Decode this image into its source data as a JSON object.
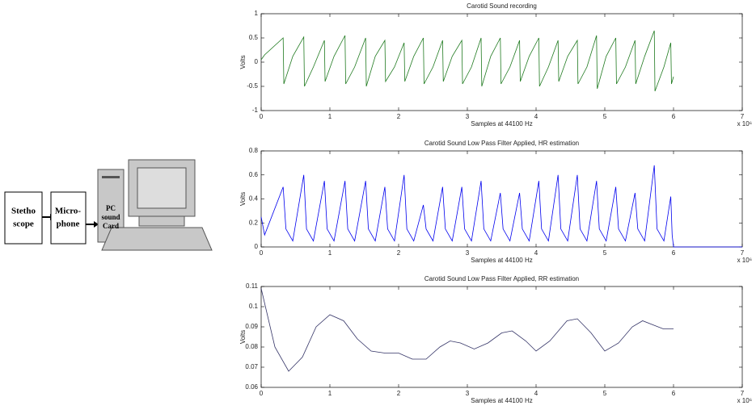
{
  "diagram": {
    "nodes": [
      {
        "label": [
          "Stetho",
          "scope"
        ]
      },
      {
        "label": [
          "Micro-",
          "phone"
        ]
      },
      {
        "label": [
          "PC",
          "sound",
          "Card"
        ]
      }
    ]
  },
  "chart_data": [
    {
      "type": "line",
      "title": "Carotid Sound recording",
      "xlabel": "Samples at 44100 Hz",
      "ylabel": "Volts",
      "x_exponent": "x 10⁶",
      "color": "#1f7a1f",
      "xlim": [
        0,
        7
      ],
      "xticks": [
        0,
        1,
        2,
        3,
        4,
        5,
        6,
        7
      ],
      "ylim": [
        -1,
        1
      ],
      "yticks": [
        -1,
        -0.5,
        0,
        0.5,
        1
      ],
      "x": [
        0,
        0.05,
        0.32,
        0.33,
        0.46,
        0.62,
        0.63,
        0.76,
        0.92,
        0.93,
        1.06,
        1.22,
        1.23,
        1.36,
        1.52,
        1.53,
        1.66,
        1.8,
        1.81,
        1.94,
        2.08,
        2.09,
        2.22,
        2.36,
        2.37,
        2.5,
        2.64,
        2.65,
        2.78,
        2.92,
        2.93,
        3.06,
        3.2,
        3.21,
        3.34,
        3.48,
        3.49,
        3.62,
        3.76,
        3.77,
        3.9,
        4.04,
        4.05,
        4.18,
        4.32,
        4.33,
        4.46,
        4.6,
        4.61,
        4.74,
        4.88,
        4.89,
        5.02,
        5.16,
        5.17,
        5.3,
        5.44,
        5.45,
        5.58,
        5.72,
        5.73,
        5.86,
        5.96,
        5.97,
        6.0
      ],
      "values": [
        0.05,
        0.15,
        0.5,
        -0.45,
        0.12,
        0.52,
        -0.5,
        -0.1,
        0.45,
        -0.4,
        0.12,
        0.55,
        -0.45,
        -0.1,
        0.5,
        -0.5,
        0.12,
        0.45,
        -0.4,
        -0.1,
        0.4,
        -0.4,
        0.12,
        0.5,
        -0.45,
        -0.1,
        0.45,
        -0.4,
        0.12,
        0.45,
        -0.45,
        -0.1,
        0.5,
        -0.5,
        0.12,
        0.5,
        -0.45,
        -0.1,
        0.45,
        -0.4,
        0.12,
        0.5,
        -0.5,
        -0.1,
        0.45,
        -0.4,
        0.12,
        0.45,
        -0.45,
        -0.1,
        0.55,
        -0.55,
        0.12,
        0.5,
        -0.45,
        -0.1,
        0.45,
        -0.45,
        0.12,
        0.65,
        -0.6,
        -0.1,
        0.4,
        -0.45,
        -0.3
      ]
    },
    {
      "type": "line",
      "title": "Carotid Sound Low Pass Filter Applied, HR estimation",
      "xlabel": "Samples at 44100 Hz",
      "ylabel": "Volts",
      "x_exponent": "x 10⁶",
      "color": "#0000ee",
      "xlim": [
        0,
        7
      ],
      "xticks": [
        0,
        1,
        2,
        3,
        4,
        5,
        6,
        7
      ],
      "ylim": [
        0,
        0.8
      ],
      "yticks": [
        0,
        0.2,
        0.4,
        0.6,
        0.8
      ],
      "x": [
        0,
        0.05,
        0.32,
        0.36,
        0.46,
        0.62,
        0.66,
        0.76,
        0.92,
        0.96,
        1.06,
        1.22,
        1.26,
        1.36,
        1.52,
        1.56,
        1.66,
        1.8,
        1.84,
        1.94,
        2.08,
        2.12,
        2.22,
        2.36,
        2.4,
        2.5,
        2.64,
        2.68,
        2.78,
        2.92,
        2.96,
        3.06,
        3.2,
        3.24,
        3.34,
        3.48,
        3.52,
        3.62,
        3.76,
        3.8,
        3.9,
        4.04,
        4.08,
        4.18,
        4.32,
        4.36,
        4.46,
        4.6,
        4.64,
        4.74,
        4.88,
        4.92,
        5.02,
        5.16,
        5.2,
        5.3,
        5.44,
        5.48,
        5.58,
        5.72,
        5.76,
        5.86,
        5.96,
        5.98,
        6.0,
        7.0
      ],
      "values": [
        0.25,
        0.1,
        0.5,
        0.15,
        0.05,
        0.6,
        0.15,
        0.05,
        0.55,
        0.15,
        0.05,
        0.55,
        0.15,
        0.05,
        0.55,
        0.15,
        0.05,
        0.5,
        0.15,
        0.05,
        0.6,
        0.15,
        0.05,
        0.35,
        0.15,
        0.05,
        0.5,
        0.15,
        0.05,
        0.5,
        0.15,
        0.05,
        0.55,
        0.15,
        0.05,
        0.45,
        0.15,
        0.05,
        0.45,
        0.15,
        0.05,
        0.55,
        0.15,
        0.05,
        0.6,
        0.15,
        0.05,
        0.6,
        0.15,
        0.05,
        0.55,
        0.15,
        0.05,
        0.5,
        0.15,
        0.05,
        0.45,
        0.15,
        0.05,
        0.68,
        0.15,
        0.05,
        0.42,
        0.1,
        0,
        0
      ]
    },
    {
      "type": "line",
      "title": "Carotid Sound Low Pass Filter Applied, RR estimation",
      "xlabel": "Samples at 44100 Hz",
      "ylabel": "Volts",
      "x_exponent": "x 10⁶",
      "color": "#333366",
      "xlim": [
        0,
        7
      ],
      "xticks": [
        0,
        1,
        2,
        3,
        4,
        5,
        6,
        7
      ],
      "ylim": [
        0.06,
        0.11
      ],
      "yticks": [
        0.06,
        0.07,
        0.08,
        0.09,
        0.1,
        0.11
      ],
      "x": [
        0,
        0.2,
        0.4,
        0.6,
        0.8,
        1.0,
        1.2,
        1.4,
        1.6,
        1.8,
        2.0,
        2.2,
        2.4,
        2.6,
        2.75,
        2.9,
        3.1,
        3.3,
        3.5,
        3.65,
        3.85,
        4.0,
        4.2,
        4.45,
        4.6,
        4.8,
        5.0,
        5.2,
        5.4,
        5.55,
        5.7,
        5.85,
        6.0
      ],
      "values": [
        0.109,
        0.08,
        0.068,
        0.075,
        0.09,
        0.096,
        0.093,
        0.084,
        0.078,
        0.077,
        0.077,
        0.074,
        0.074,
        0.08,
        0.083,
        0.082,
        0.079,
        0.082,
        0.087,
        0.088,
        0.083,
        0.078,
        0.083,
        0.093,
        0.094,
        0.087,
        0.078,
        0.082,
        0.09,
        0.093,
        0.091,
        0.089,
        0.089
      ]
    }
  ]
}
